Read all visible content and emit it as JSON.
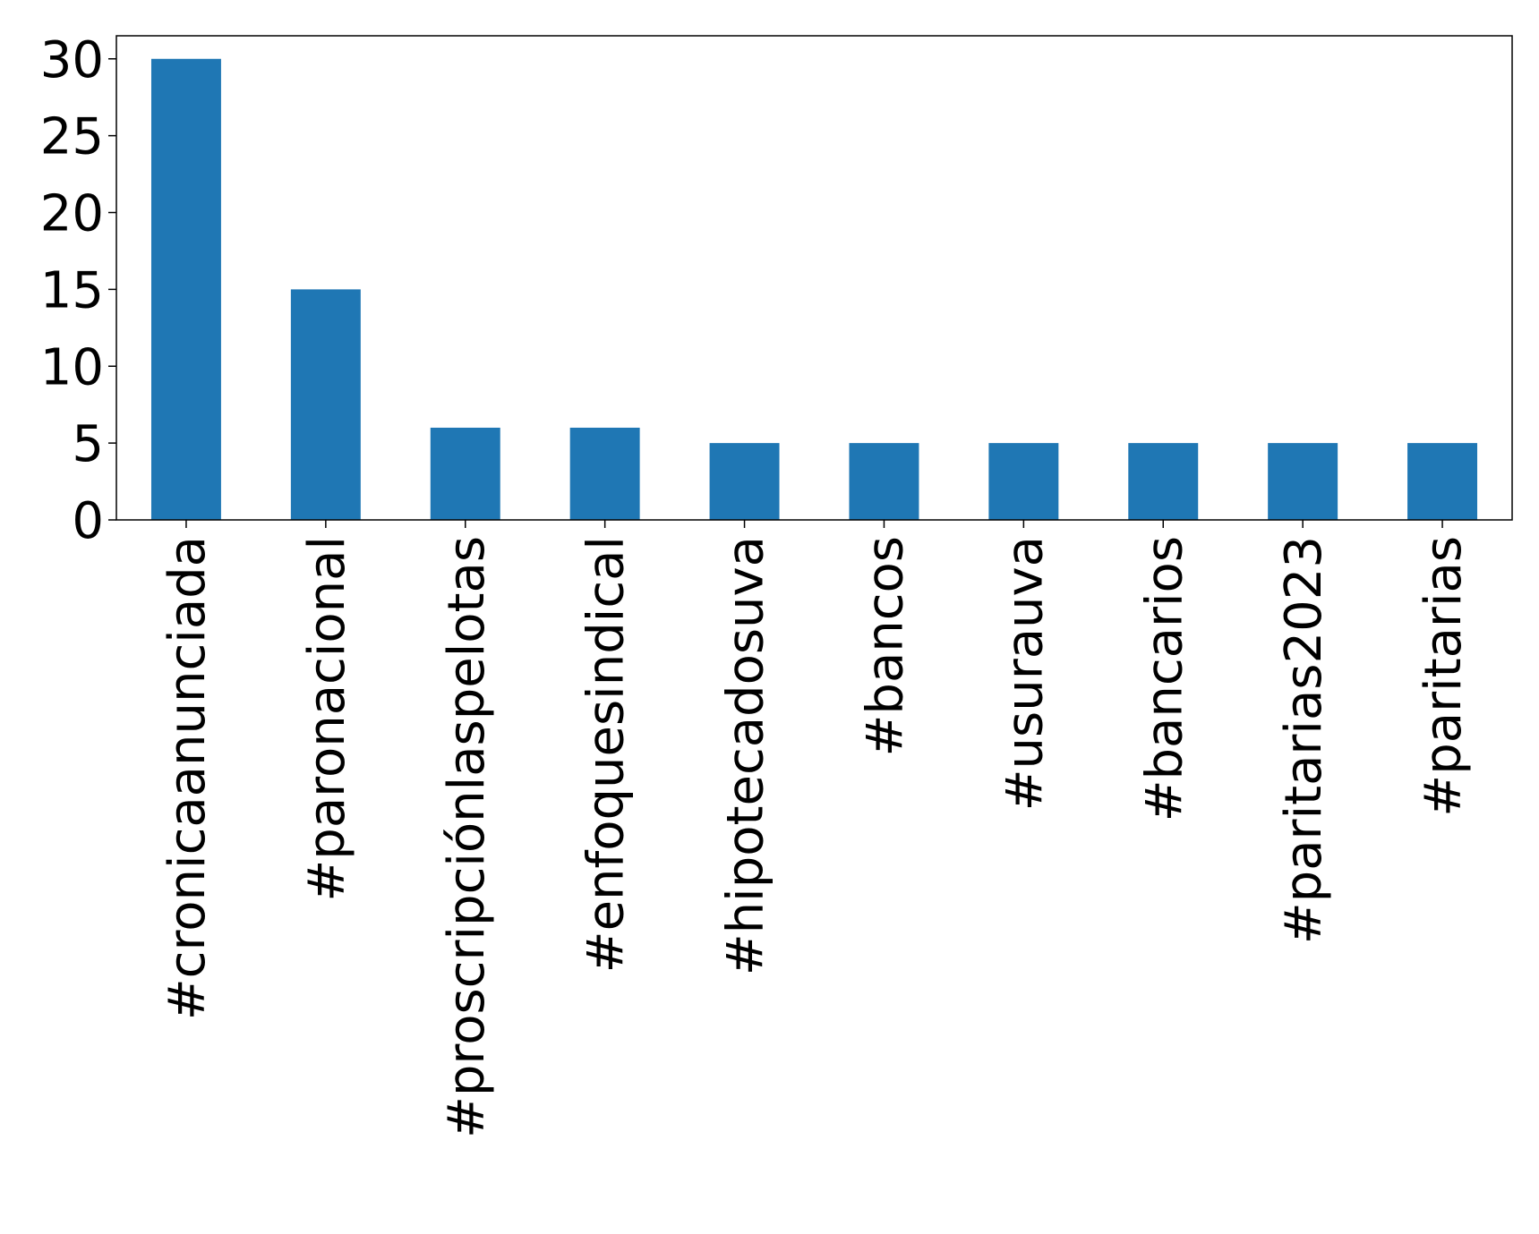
{
  "chart_data": {
    "type": "bar",
    "categories": [
      "#cronicaanunciada",
      "#paronacional",
      "#proscripciónlaspelotas",
      "#enfoquesindical",
      "#hipotecadosuva",
      "#bancos",
      "#usurauva",
      "#bancarios",
      "#paritarias2023",
      "#paritarias"
    ],
    "values": [
      30,
      15,
      6,
      6,
      5,
      5,
      5,
      5,
      5,
      5
    ],
    "title": "",
    "xlabel": "",
    "ylabel": "",
    "ylim": [
      0,
      31.5
    ],
    "yticks": [
      "0",
      "5",
      "10",
      "15",
      "20",
      "25",
      "30"
    ],
    "grid": false,
    "legend": "none",
    "colors": {
      "bar": "#1f77b4",
      "axis": "#000000"
    }
  }
}
